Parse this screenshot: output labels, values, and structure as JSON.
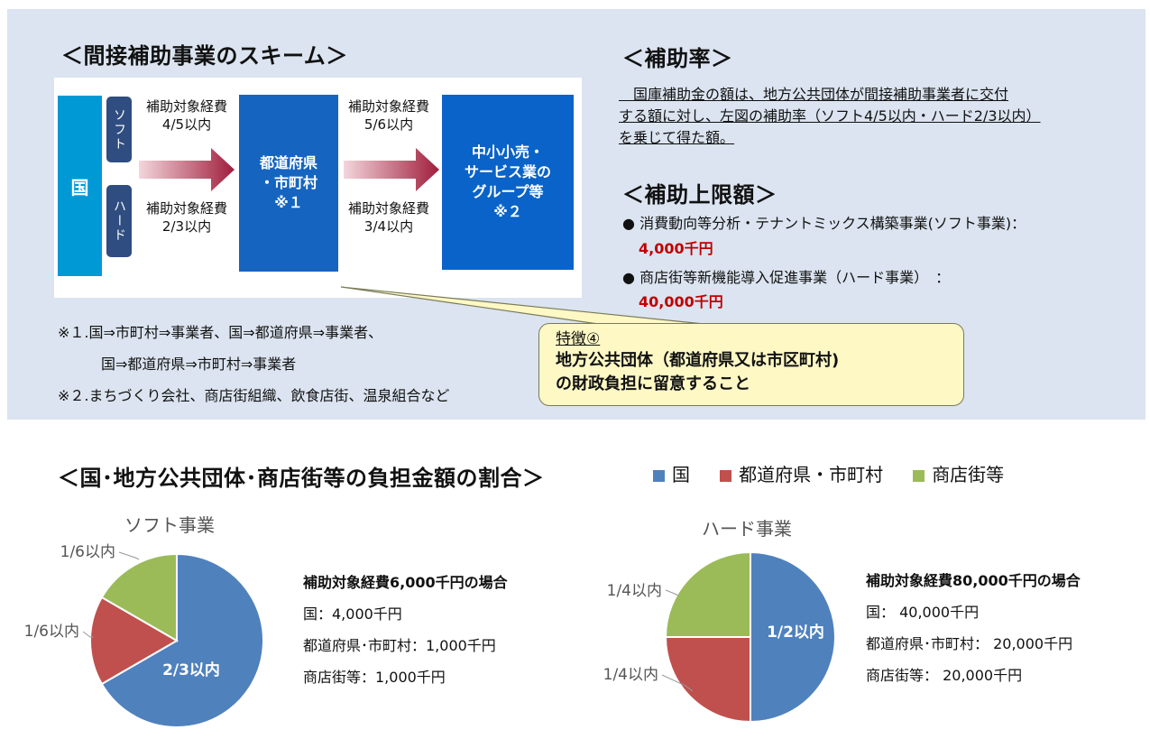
{
  "scheme": {
    "title": "＜間接補助事業のスキーム＞",
    "kuni": "国",
    "soft_tag": "ソフト",
    "hard_tag": "ハード",
    "soft_rate1": [
      "補助対象経費",
      "4/5以内"
    ],
    "hard_rate1": [
      "補助対象経費",
      "2/3以内"
    ],
    "todofuken": [
      "都道府県",
      "・市町村",
      "※１"
    ],
    "soft_rate2": [
      "補助対象経費",
      "5/6以内"
    ],
    "hard_rate2": [
      "補助対象経費",
      "3/4以内"
    ],
    "chusho": [
      "中小小売・",
      "サービス業の",
      "グループ等",
      "※２"
    ],
    "notes": [
      "※１.国⇒市町村⇒事業者、国⇒都道府県⇒事業者、",
      "国⇒都道府県⇒市町村⇒事業者",
      "※２.まちづくり会社、商店街組織、飲食店街、温泉組合など"
    ],
    "colors": {
      "kuni": "#0099d6",
      "prefecture": "#1565c0",
      "group": "#0a63c8",
      "tag": "#2f4d80",
      "arrow": "#a01e3c"
    }
  },
  "hojoritsu": {
    "title": "＜補助率＞",
    "lines": [
      "　国庫補助金の額は、地方公共団体が間接補助事業者に交付",
      "する額に対し、左図の補助率（ソフト4/5以内・ハード2/3以内）",
      "を乗じて得た額。"
    ]
  },
  "upper_limit": {
    "title": "＜補助上限額＞",
    "items": [
      {
        "label": "消費動向等分析・テナントミックス構築事業(ソフト事業)：",
        "amount": "4,000千円"
      },
      {
        "label": "商店街等新機能導入促進事業（ハード事業）　：",
        "amount": "40,000千円"
      }
    ]
  },
  "callout": {
    "label": "特徴④",
    "lines": [
      "地方公共団体（都道府県又は市区町村)",
      "の財政負担に留意すること"
    ]
  },
  "burden": {
    "title": "＜国･地方公共団体･商店街等の負担金額の割合＞",
    "legend": [
      {
        "name": "国",
        "color": "#4f81bd"
      },
      {
        "name": "都道府県・市町村",
        "color": "#c0504d"
      },
      {
        "name": "商店街等",
        "color": "#9bbb59"
      }
    ]
  },
  "chart_data": [
    {
      "type": "pie",
      "title": "ソフト事業",
      "categories": [
        "国",
        "都道府県・市町村",
        "商店街等"
      ],
      "values": [
        4000,
        1000,
        1000
      ],
      "labels": [
        "2/3以内",
        "1/6以内",
        "1/6以内"
      ],
      "colors": [
        "#4f81bd",
        "#c0504d",
        "#9bbb59"
      ],
      "info": {
        "head": "補助対象経費6,000千円の場合",
        "lines": [
          "国：4,000千円",
          "都道府県･市町村：1,000千円",
          "商店街等：1,000千円"
        ]
      }
    },
    {
      "type": "pie",
      "title": "ハード事業",
      "categories": [
        "国",
        "都道府県・市町村",
        "商店街等"
      ],
      "values": [
        40000,
        20000,
        20000
      ],
      "labels": [
        "1/2以内",
        "1/4以内",
        "1/4以内"
      ],
      "colors": [
        "#4f81bd",
        "#c0504d",
        "#9bbb59"
      ],
      "info": {
        "head": "補助対象経費80,000千円の場合",
        "lines": [
          "国： 40,000千円",
          "都道府県･市町村： 20,000千円",
          "商店街等： 20,000千円"
        ]
      }
    }
  ]
}
